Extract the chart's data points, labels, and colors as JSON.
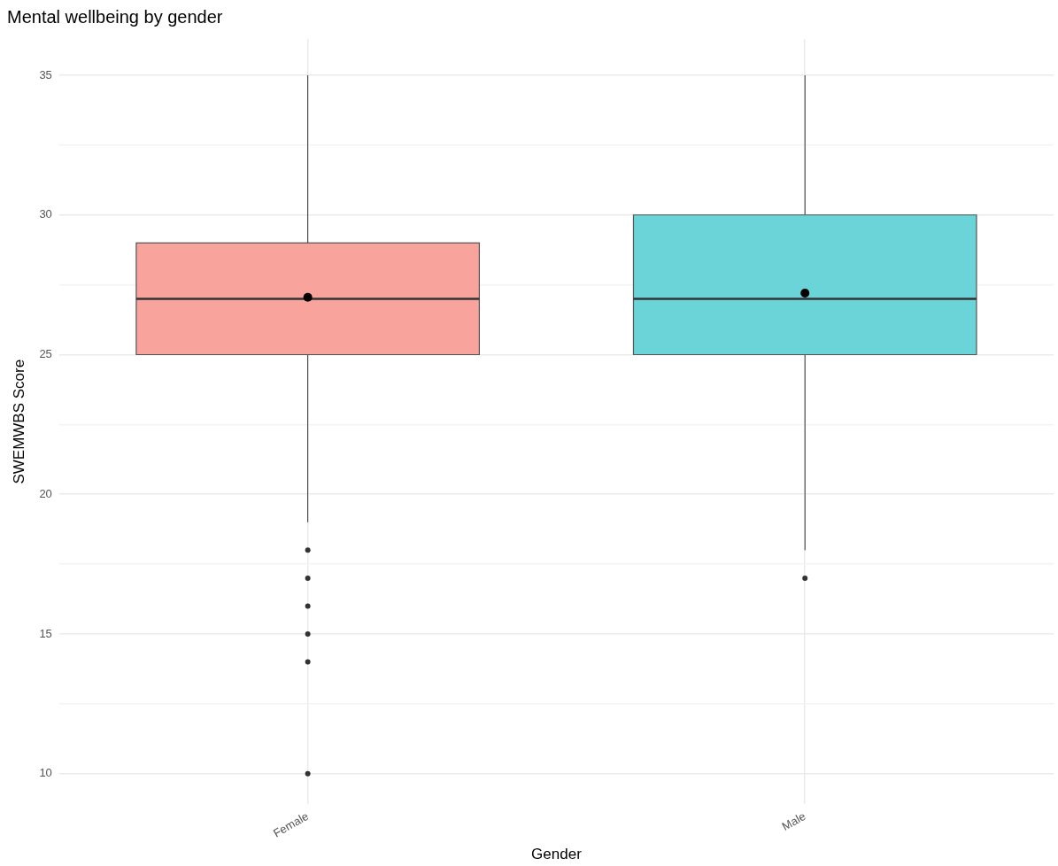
{
  "chart_data": {
    "type": "box",
    "title": "Mental wellbeing by gender",
    "xlabel": "Gender",
    "ylabel": "SWEMWBS Score",
    "categories": [
      "Female",
      "Male"
    ],
    "colors": [
      "#f9a39d",
      "#6ad4d9"
    ],
    "boxes": [
      {
        "low": 19,
        "q1": 25,
        "median": 27,
        "q3": 29,
        "high": 35,
        "mean": 27.05,
        "outliers": [
          18,
          17,
          16,
          15,
          14,
          10
        ]
      },
      {
        "low": 18,
        "q1": 25,
        "median": 27,
        "q3": 30,
        "high": 35,
        "mean": 27.2,
        "outliers": [
          17
        ]
      }
    ],
    "ylim": [
      8.9,
      36.3
    ],
    "yticks": [
      10,
      {
        "value": 12.5,
        "label": null
      },
      15,
      {
        "value": 17.5,
        "label": null
      },
      20,
      {
        "value": 22.5,
        "label": null
      },
      25,
      {
        "value": 27.5,
        "label": null
      },
      30,
      {
        "value": 32.5,
        "label": null
      },
      35
    ],
    "grid": true,
    "legend": false
  }
}
